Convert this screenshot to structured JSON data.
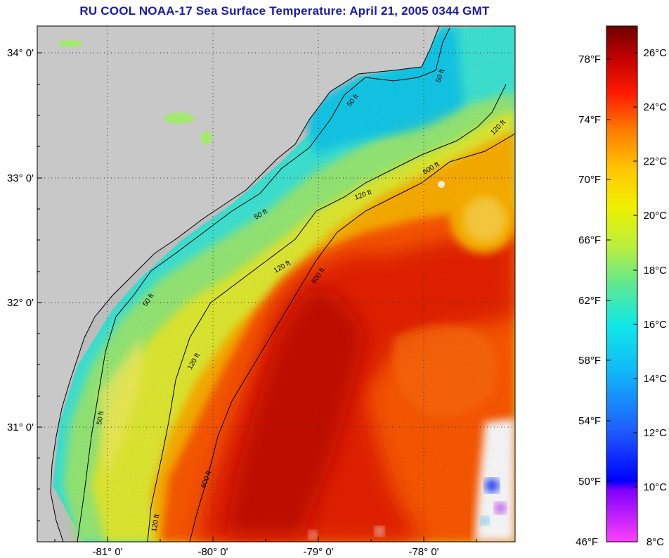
{
  "title": "RU COOL  NOAA-17  Sea Surface Temperature:  April 21, 2005 0344 GMT",
  "map": {
    "lat_labels": [
      "34° 0'",
      "33° 0'",
      "32° 0'",
      "31° 0'"
    ],
    "lon_labels": [
      "-81° 0'",
      "-80° 0'",
      "-79° 0'",
      "-78° 0'"
    ],
    "contour_labels": [
      "50 ft",
      "50 ft",
      "50 ft",
      "50 ft",
      "50 ft",
      "120 ft",
      "120 ft",
      "120 ft",
      "120 ft",
      "120 ft",
      "600 ft",
      "600 ft",
      "600 ft"
    ]
  },
  "colorbar": {
    "fahrenheit_labels": [
      "78°F",
      "74°F",
      "70°F",
      "66°F",
      "62°F",
      "58°F",
      "54°F",
      "50°F",
      "46°F"
    ],
    "celsius_labels": [
      "26°C",
      "24°C",
      "22°C",
      "20°C",
      "18°C",
      "16°C",
      "14°C",
      "12°C",
      "10°C",
      "8°C"
    ],
    "colors": [
      "#6e0000",
      "#c00000",
      "#ff1a00",
      "#ff7a00",
      "#ffc800",
      "#f0f000",
      "#b8ef40",
      "#60e890",
      "#10e8e8",
      "#10b8f8",
      "#2060ff",
      "#0000ff",
      "#8000ff",
      "#ff40ff"
    ]
  }
}
